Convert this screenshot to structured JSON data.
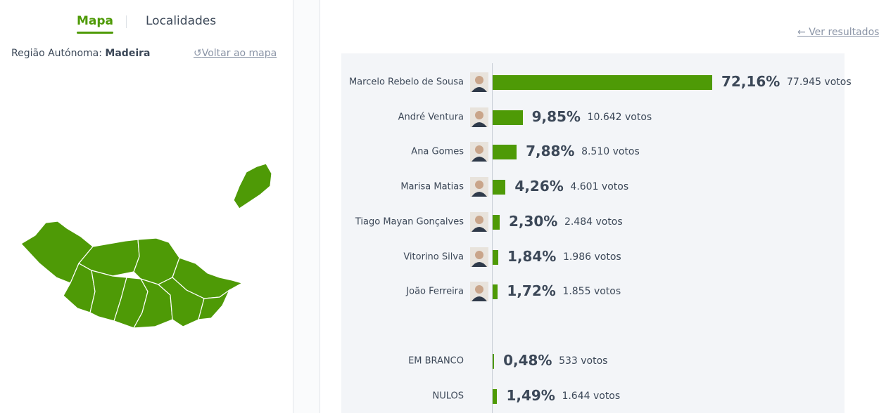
{
  "tabs": [
    "Mapa",
    "Localidades"
  ],
  "region": {
    "label": "Região Autónoma:",
    "name": "Madeira"
  },
  "back_link": "Voltar ao mapa",
  "results_link": "Ver resultados",
  "results": {
    "candidates": [
      {
        "name": "Marcelo Rebelo de Sousa",
        "value": 72.16,
        "value_label": "72,16%",
        "votes": "77.945 votos"
      },
      {
        "name": "André Ventura",
        "value": 9.85,
        "value_label": "9,85%",
        "votes": "10.642 votos"
      },
      {
        "name": "Ana Gomes",
        "value": 7.88,
        "value_label": "7,88%",
        "votes": "8.510 votos"
      },
      {
        "name": "Marisa Matias",
        "value": 4.26,
        "value_label": "4,26%",
        "votes": "4.601 votos"
      },
      {
        "name": "Tiago Mayan Gonçalves",
        "value": 2.3,
        "value_label": "2,30%",
        "votes": "2.484 votos"
      },
      {
        "name": "Vitorino Silva",
        "value": 1.84,
        "value_label": "1,84%",
        "votes": "1.986 votos"
      },
      {
        "name": "João Ferreira",
        "value": 1.72,
        "value_label": "1,72%",
        "votes": "1.855 votos"
      }
    ],
    "other": [
      {
        "name": "EM BRANCO",
        "value": 0.48,
        "value_label": "0,48%",
        "votes": "533 votos"
      },
      {
        "name": "NULOS",
        "value": 1.49,
        "value_label": "1,49%",
        "votes": "1.644 votos"
      }
    ],
    "color": "#4e9a06"
  }
}
